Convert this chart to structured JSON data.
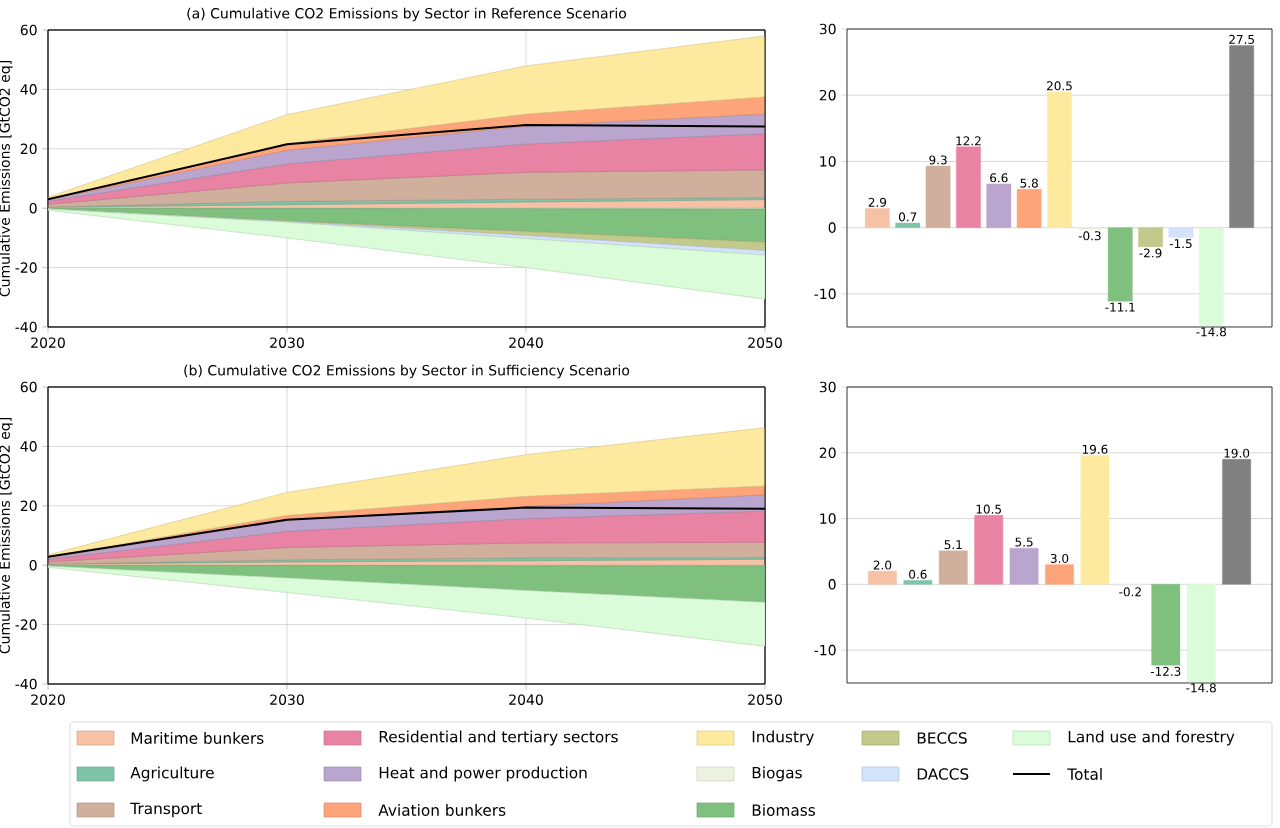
{
  "chart_data": [
    {
      "type": "area",
      "title": "(a)   Cumulative CO2 Emissions by Sector in Reference Scenario",
      "ylabel": "Cumulative Emissions [GtCO2 eq]",
      "x": [
        2020,
        2030,
        2040,
        2050
      ],
      "xlim": [
        2020,
        2050
      ],
      "xticks": [
        2020,
        2030,
        2040,
        2050
      ],
      "ylim": [
        -40,
        60
      ],
      "yticks": [
        -40,
        -20,
        0,
        20,
        40,
        60
      ],
      "grid": true,
      "stacked": true,
      "legend": "bottom",
      "tick_labels": false,
      "series": [
        {
          "name": "Maritime bunkers",
          "color": "#f7c1a6",
          "values": [
            0.3,
            1.2,
            2.1,
            2.9
          ]
        },
        {
          "name": "Agriculture",
          "color": "#7fc4a6",
          "values": [
            0.1,
            1.1,
            0.9,
            0.7
          ]
        },
        {
          "name": "Transport",
          "color": "#d0b09d",
          "values": [
            0.9,
            6.2,
            9.1,
            9.3
          ]
        },
        {
          "name": "Residential and tertiary sectors",
          "color": "#e883a3",
          "values": [
            1.0,
            6.4,
            9.5,
            12.2
          ]
        },
        {
          "name": "Heat and power production",
          "color": "#b9a5cd",
          "values": [
            0.5,
            4.6,
            6.1,
            6.6
          ]
        },
        {
          "name": "Aviation bunkers",
          "color": "#fea47b",
          "values": [
            0.3,
            2.3,
            4.0,
            5.8
          ]
        },
        {
          "name": "Industry",
          "color": "#feea9e",
          "values": [
            0.6,
            9.7,
            16.2,
            20.5
          ]
        }
      ]
    },
    {
      "type": "area",
      "x": [
        2020,
        2030,
        2040,
        2050
      ],
      "xlim": [
        2020,
        2050
      ],
      "xticks": [
        2020,
        2030,
        2040,
        2050
      ],
      "ylim": [
        -40,
        60
      ],
      "yticks": [
        -40,
        -20,
        0,
        20,
        40,
        60
      ],
      "stacked": true,
      "legend": "bottom",
      "series": [
        {
          "name": "Biogas",
          "color": "#ecf2df",
          "values": [
            0,
            -0.1,
            -0.2,
            -0.3
          ]
        },
        {
          "name": "Biomass",
          "color": "#7fc07f",
          "values": [
            -0.3,
            -4.2,
            -7.6,
            -11.1
          ]
        },
        {
          "name": "BECCS",
          "color": "#c2c98a",
          "values": [
            0,
            -0.2,
            -1.4,
            -2.9
          ]
        },
        {
          "name": "DACCS",
          "color": "#d3e3fb",
          "values": [
            0,
            -0.2,
            -1.0,
            -1.5
          ]
        },
        {
          "name": "Land use and forestry",
          "color": "#dbfcd8",
          "values": [
            -0.4,
            -5.3,
            -9.8,
            -14.8
          ]
        },
        {
          "name": "Total",
          "type": "line",
          "color": "#000000",
          "values": [
            3.0,
            21.5,
            28.0,
            27.5
          ]
        }
      ]
    },
    {
      "type": "bar",
      "categories": [
        null,
        null,
        null,
        null,
        null,
        null,
        null,
        null,
        null,
        null,
        null,
        null,
        null
      ],
      "values": [
        2.9,
        0.7,
        9.3,
        12.2,
        6.6,
        5.8,
        20.5,
        -0.3,
        -11.1,
        -2.9,
        -1.5,
        -14.8,
        27.5
      ],
      "value_labels": [
        "2.9",
        "0.7",
        "9.3",
        "12.2",
        "6.6",
        "5.8",
        "20.5",
        "-0.3",
        "-11.1",
        "-2.9",
        "-1.5",
        "-14.8",
        "27.5"
      ],
      "colors": [
        "#f7c1a6",
        "#7fc4a6",
        "#d0b09d",
        "#e883a3",
        "#b9a5cd",
        "#fea47b",
        "#feea9e",
        "#ecf2df",
        "#7fc07f",
        "#c2c98a",
        "#d3e3fb",
        "#dbfcd8",
        "#808080"
      ],
      "ylim": [
        -15,
        30
      ],
      "yticks": [
        -10,
        0,
        10,
        20,
        30
      ],
      "grid": "y"
    },
    {
      "type": "area",
      "title": "(b)   Cumulative CO2 Emissions by Sector in Sufficiency Scenario",
      "ylabel": "Cumulative Emissions [GtCO2 eq]",
      "x": [
        2020,
        2030,
        2040,
        2050
      ],
      "xlim": [
        2020,
        2050
      ],
      "xticks": [
        2020,
        2030,
        2040,
        2050
      ],
      "ylim": [
        -40,
        60
      ],
      "yticks": [
        -40,
        -20,
        0,
        20,
        40,
        60
      ],
      "grid": true,
      "stacked": true,
      "series": [
        {
          "color": "#f7c1a6",
          "values": [
            0.3,
            1.1,
            1.5,
            2.0
          ]
        },
        {
          "color": "#7fc4a6",
          "values": [
            0.1,
            0.7,
            1.0,
            0.6
          ]
        },
        {
          "color": "#d0b09d",
          "values": [
            0.7,
            4.2,
            5.0,
            5.1
          ]
        },
        {
          "color": "#e883a3",
          "values": [
            0.9,
            5.4,
            8.2,
            10.5
          ]
        },
        {
          "color": "#b9a5cd",
          "values": [
            0.5,
            3.8,
            4.1,
            5.5
          ]
        },
        {
          "color": "#fea47b",
          "values": [
            0.3,
            1.6,
            3.4,
            3.0
          ]
        },
        {
          "color": "#feea9e",
          "values": [
            0.7,
            7.7,
            14.0,
            19.6
          ]
        }
      ]
    },
    {
      "type": "area",
      "x": [
        2020,
        2030,
        2040,
        2050
      ],
      "xlim": [
        2020,
        2050
      ],
      "xticks": [
        2020,
        2030,
        2040,
        2050
      ],
      "ylim": [
        -40,
        60
      ],
      "yticks": [
        -40,
        -20,
        0,
        20,
        40,
        60
      ],
      "stacked": true,
      "tick_labels": false,
      "series": [
        {
          "color": "#ecf2df",
          "values": [
            0,
            -0.1,
            -0.2,
            -0.2
          ]
        },
        {
          "color": "#7fc07f",
          "values": [
            -0.3,
            -4.2,
            -8.3,
            -12.3
          ]
        },
        {
          "color": "#dbfcd8",
          "values": [
            -0.4,
            -4.9,
            -9.3,
            -14.8
          ]
        },
        {
          "type": "line",
          "color": "#000000",
          "values": [
            2.8,
            15.3,
            19.4,
            19.0
          ]
        }
      ]
    },
    {
      "type": "bar",
      "categories": [
        null,
        null,
        null,
        null,
        null,
        null,
        null,
        null,
        null,
        null,
        null
      ],
      "values": [
        2.0,
        0.6,
        5.1,
        10.5,
        5.5,
        3.0,
        19.6,
        -0.2,
        -12.3,
        -14.8,
        19.0
      ],
      "value_labels": [
        "2.0",
        "0.6",
        "5.1",
        "10.5",
        "5.5",
        "3.0",
        "19.6",
        "-0.2",
        "-12.3",
        "-14.8",
        "19.0"
      ],
      "colors": [
        "#f7c1a6",
        "#7fc4a6",
        "#d0b09d",
        "#e883a3",
        "#b9a5cd",
        "#fea47b",
        "#feea9e",
        "#ecf2df",
        "#7fc07f",
        "#dbfcd8",
        "#808080"
      ],
      "ylim": [
        -15,
        30
      ],
      "yticks": [
        -10,
        0,
        10,
        20,
        30
      ],
      "grid": "y"
    }
  ]
}
